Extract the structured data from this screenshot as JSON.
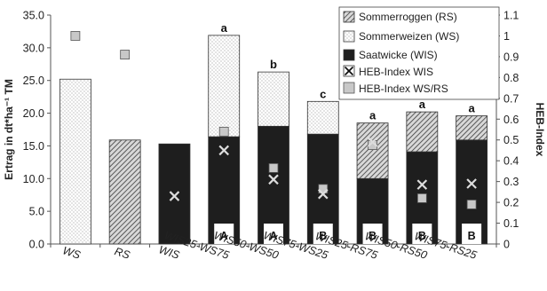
{
  "chart_data": {
    "type": "bar",
    "stacked": true,
    "categories": [
      "WS",
      "RS",
      "WIS",
      "WIS25-WS75",
      "WIS50-WS50",
      "WIS75-WS25",
      "WIS25-RS75",
      "WIS50-RS50",
      "WIS75-RS25"
    ],
    "ylabel": "Ertrag in dt*ha⁻¹ TM",
    "y2label": "HEB-Index",
    "ylim": [
      0,
      35
    ],
    "y2lim": [
      0,
      1.1
    ],
    "yticks": [
      "0.0",
      "5.0",
      "10.0",
      "15.0",
      "20.0",
      "25.0",
      "30.0",
      "35.0"
    ],
    "y2ticks": [
      "0",
      "0.1",
      "0.2",
      "0.3",
      "0.4",
      "0.5",
      "0.6",
      "0.7",
      "0.8",
      "0.9",
      "1",
      "1.1"
    ],
    "series": [
      {
        "name": "Saatwicke (WIS)",
        "values": [
          0,
          0,
          15.3,
          16.4,
          18.0,
          16.8,
          10.0,
          14.1,
          15.9
        ]
      },
      {
        "name": "Sommerweizen (WS)",
        "values": [
          25.2,
          0,
          0,
          15.5,
          8.3,
          5.0,
          0,
          0,
          0
        ]
      },
      {
        "name": "Sommerroggen (RS)",
        "values": [
          0,
          15.9,
          0,
          0,
          0,
          0,
          8.5,
          6.1,
          3.7
        ]
      }
    ],
    "heb_index": [
      {
        "name": "HEB-Index WIS",
        "values": [
          null,
          null,
          0.23,
          0.45,
          0.31,
          0.24,
          0.49,
          0.285,
          0.29
        ]
      },
      {
        "name": "HEB-Index WS/RS",
        "values": [
          1.0,
          0.91,
          null,
          0.54,
          0.365,
          0.265,
          0.475,
          0.22,
          0.19
        ]
      }
    ],
    "significance_letters": [
      "",
      "",
      "",
      "a",
      "b",
      "c",
      "a",
      "a",
      "a"
    ],
    "group_letters": [
      "",
      "",
      "",
      "A",
      "A",
      "B",
      "B",
      "B",
      "B"
    ],
    "legend_position": "top-right",
    "grid": false
  }
}
